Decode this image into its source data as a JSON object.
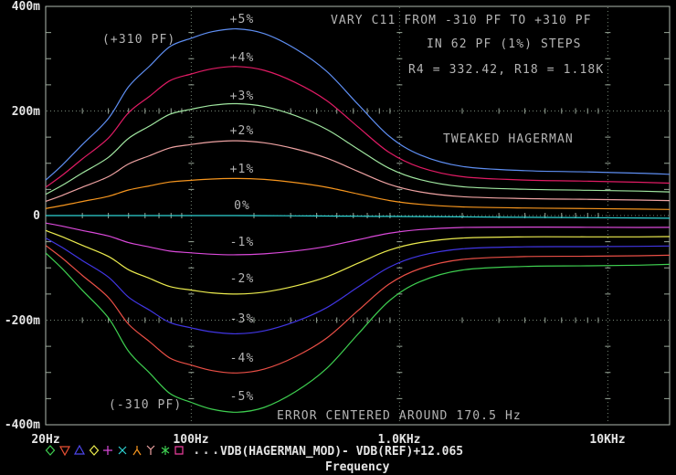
{
  "annotations": {
    "vary_line1": "VARY C11 FROM -310 PF TO +310 PF",
    "vary_line2": "IN 62 PF (1%) STEPS",
    "vary_line3": "R4 = 332.42, R18 = 1.18K",
    "tweaked": "TWEAKED HAGERMAN",
    "cap_plus": "(+310 PF)",
    "cap_minus": "(-310 PF)",
    "error_note": "ERROR CENTERED AROUND 170.5 Hz"
  },
  "axis": {
    "x_title": "Frequency",
    "x_ticks": [
      "20Hz",
      "100Hz",
      "1.0KHz",
      "10KHz"
    ],
    "y_ticks": [
      "400m",
      "200m",
      "0",
      "-200m",
      "-400m"
    ]
  },
  "legend": {
    "more_indicator": "...",
    "trace_label": "VDB(HAGERMAN_MOD)- VDB(REF)+12.065",
    "symbols": [
      {
        "shape": "diamond",
        "color": "#3ecf50"
      },
      {
        "shape": "triangle-down",
        "color": "#ea5033"
      },
      {
        "shape": "triangle-up",
        "color": "#4d46ec"
      },
      {
        "shape": "diamond",
        "color": "#ecec4e"
      },
      {
        "shape": "plus",
        "color": "#da49da"
      },
      {
        "shape": "x",
        "color": "#2dd4d4"
      },
      {
        "shape": "lambda",
        "color": "#f5951e"
      },
      {
        "shape": "wye",
        "color": "#eea2a2"
      },
      {
        "shape": "asterisk",
        "color": "#3ecf50"
      },
      {
        "shape": "square",
        "color": "#ef3fa0"
      }
    ]
  },
  "colors": {
    "background": "#000000",
    "grid": "#768676",
    "border": "#b0bab0",
    "tick": "#9aa89a",
    "annotation_text": "#b4b4b4",
    "axis_text": "#e4e4e4"
  },
  "chart_data": {
    "type": "line",
    "title": "VARY C11 FROM -310 PF TO +310 PF IN 62 PF (1%) STEPS",
    "x_axis": {
      "title": "Frequency",
      "scale": "log",
      "unit": "Hz",
      "range_hz": [
        20,
        19800
      ],
      "tick_labels": [
        "20Hz",
        "100Hz",
        "1.0KHz",
        "10KHz"
      ],
      "tick_hz": [
        20,
        100,
        1000,
        10000
      ]
    },
    "y_axis": {
      "unit": "milli-dB",
      "range_mdb": [
        -400,
        400
      ],
      "tick_labels": [
        "400m",
        "200m",
        "0",
        "-200m",
        "-400m"
      ],
      "tick_mdb": [
        400,
        200,
        0,
        -200,
        -400
      ]
    },
    "grid": {
      "major_x_hz": [
        100,
        1000,
        10000
      ],
      "major_y_mdb": [
        200,
        0,
        -200
      ],
      "minor_y_step_mdb": 50,
      "style": "dotted"
    },
    "center_hz": 170.5,
    "profile": {
      "note": "shared bump shape: value_mdb(f) = peak_mdb * ratio(f) + hf_offset_mdb(f); hf_offset = -5*min(1,(log10(f)-2.3)/2) for f>200Hz",
      "freq_hz": [
        20,
        24,
        30,
        40,
        50,
        63,
        79,
        100,
        126,
        166,
        224,
        316,
        447,
        631,
        891,
        1259,
        2000,
        4000,
        7940,
        14100,
        19800
      ],
      "ratio": [
        0.19,
        0.27,
        0.38,
        0.52,
        0.69,
        0.8,
        0.905,
        0.95,
        0.985,
        1.0,
        0.975,
        0.895,
        0.775,
        0.6,
        0.43,
        0.33,
        0.27,
        0.25,
        0.245,
        0.24,
        0.235
      ]
    },
    "series": [
      {
        "label": "+5%",
        "capacitance": "+310 PF",
        "peak_mdb": 357,
        "color": "#5e8ef2"
      },
      {
        "label": "+4%",
        "peak_mdb": 285,
        "color": "#e01b64"
      },
      {
        "label": "+3%",
        "peak_mdb": 214,
        "color": "#a0e6a0"
      },
      {
        "label": "+2%",
        "peak_mdb": 143,
        "color": "#eea2a2"
      },
      {
        "label": "+1%",
        "peak_mdb": 71,
        "color": "#f5951e"
      },
      {
        "label": "0%",
        "peak_mdb": 0,
        "color": "#2dd4d4"
      },
      {
        "label": "-1%",
        "peak_mdb": -75,
        "color": "#da49da"
      },
      {
        "label": "-2%",
        "peak_mdb": -150,
        "color": "#ecec4e"
      },
      {
        "label": "-3%",
        "peak_mdb": -226,
        "color": "#4136e4"
      },
      {
        "label": "-4%",
        "peak_mdb": -301,
        "color": "#ea4f46"
      },
      {
        "label": "-5%",
        "capacitance": "-310 PF",
        "peak_mdb": -376,
        "color": "#3ecf50"
      }
    ]
  }
}
